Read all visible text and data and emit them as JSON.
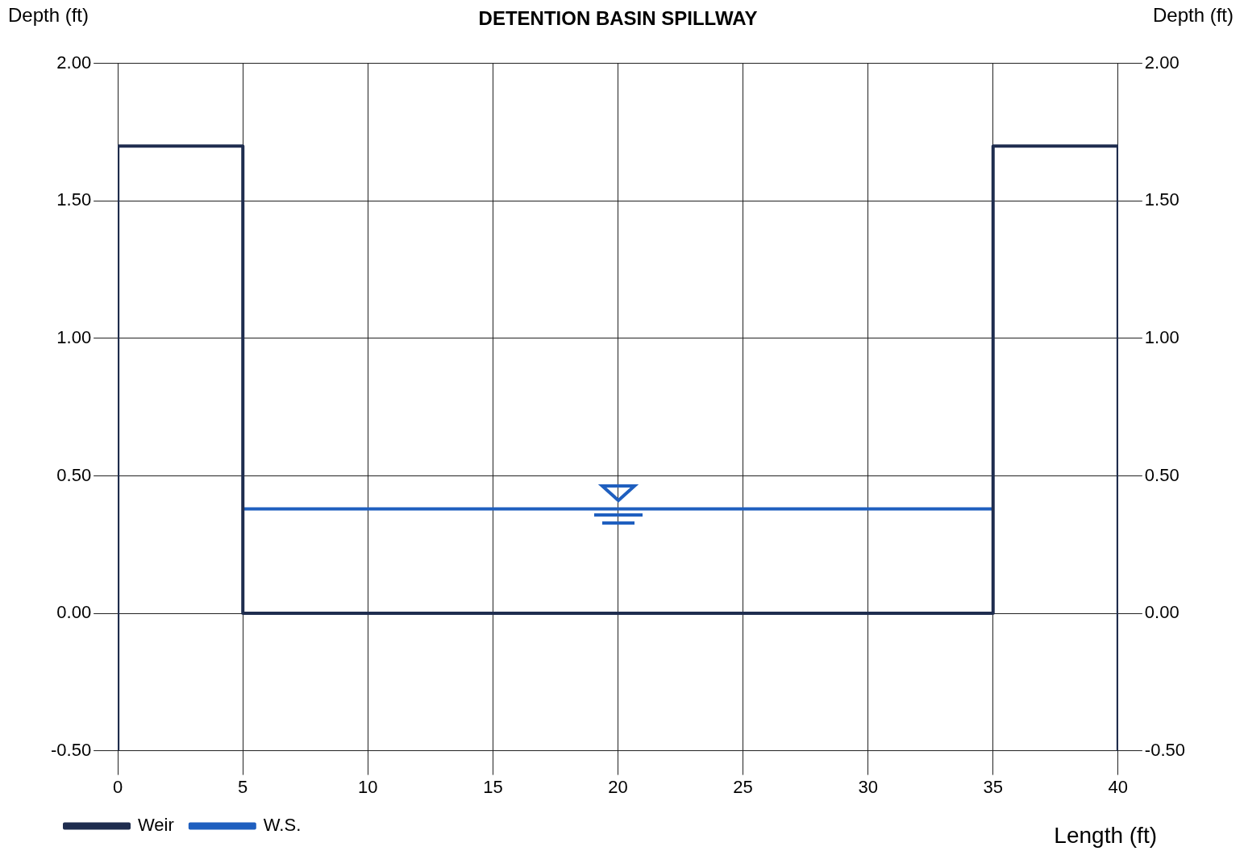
{
  "chart_data": {
    "type": "line",
    "title": "DETENTION BASIN SPILLWAY",
    "ylabel": "Depth (ft)",
    "y2label": "Depth (ft)",
    "xlabel": "Length (ft)",
    "series": [
      {
        "name": "Weir",
        "color": "#1f2d4f",
        "x": [
          0,
          0,
          5,
          5,
          35,
          35,
          40,
          40
        ],
        "values": [
          -0.5,
          1.7,
          1.7,
          0,
          0,
          1.7,
          1.7,
          -0.5
        ]
      },
      {
        "name": "W.S.",
        "color": "#1f5fbf",
        "x": [
          5,
          35
        ],
        "values": [
          0.38,
          0.38
        ]
      }
    ],
    "xlim": [
      0,
      40
    ],
    "xticks": [
      0,
      5,
      10,
      15,
      20,
      25,
      30,
      35,
      40
    ],
    "ylim": [
      -0.5,
      2
    ],
    "yticks": [
      {
        "value": -0.5,
        "label": "-0.50"
      },
      {
        "value": 0,
        "label": "0.00"
      },
      {
        "value": 0.5,
        "label": "0.50"
      },
      {
        "value": 1,
        "label": "1.00"
      },
      {
        "value": 1.5,
        "label": "1.50"
      },
      {
        "value": 2,
        "label": "2.00"
      }
    ],
    "y2lim": [
      -0.5,
      2
    ],
    "y2ticks": [
      {
        "value": -0.5,
        "label": "-0.50"
      },
      {
        "value": 0,
        "label": "0.00"
      },
      {
        "value": 0.5,
        "label": "0.50"
      },
      {
        "value": 1,
        "label": "1.00"
      },
      {
        "value": 1.5,
        "label": "1.50"
      },
      {
        "value": 2,
        "label": "2.00"
      }
    ],
    "grid": true,
    "legend": "bottom left",
    "marker": "none",
    "line_style": "solid"
  }
}
